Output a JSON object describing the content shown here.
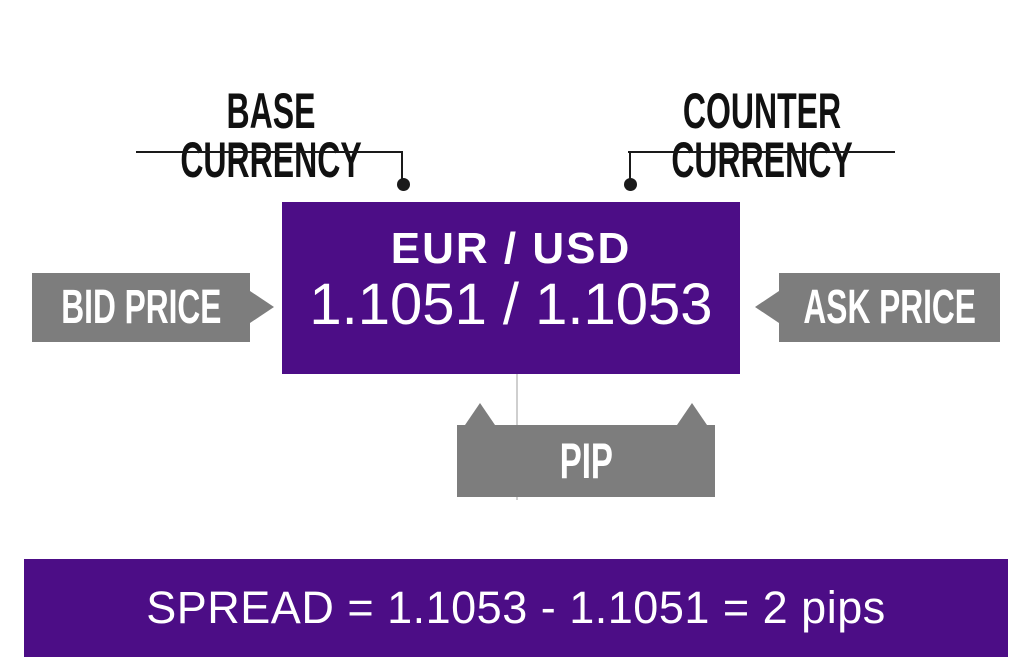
{
  "colors": {
    "purple": "#4C0D86",
    "gray": "#7D7D7D",
    "line-black": "#1a1a1a",
    "faint-line": "#cfcfcf",
    "white": "#ffffff",
    "label-black": "#111111"
  },
  "annotations": {
    "base_currency": "BASE\nCURRENCY",
    "counter_currency": "COUNTER\nCURRENCY",
    "bid_price": "BID PRICE",
    "ask_price": "ASK PRICE",
    "pip": "PIP"
  },
  "quote": {
    "pair": "EUR / USD",
    "bid": "1.1051",
    "ask": "1.1053",
    "prices_display": "1.1051 / 1.1053"
  },
  "spread": {
    "equation": "SPREAD = 1.1053 - 1.1051 = 2 pips",
    "value_pips": 2
  }
}
